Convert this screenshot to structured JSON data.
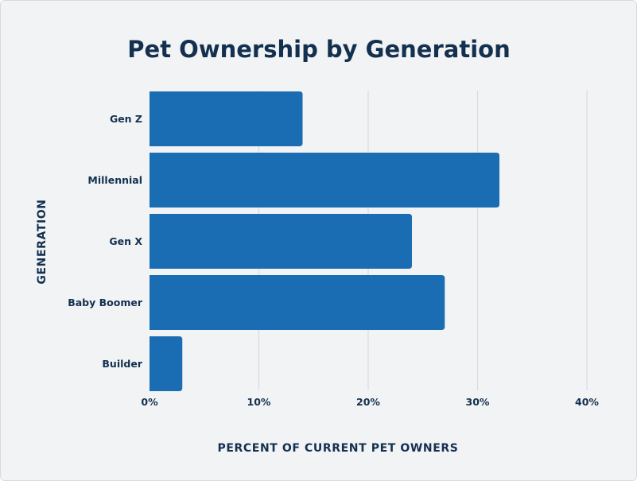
{
  "colors": {
    "background": "#f1f3f5",
    "bar": "#1b6db3",
    "text": "#13304f",
    "grid": "#d9dde2"
  },
  "chart_data": {
    "type": "bar",
    "orientation": "horizontal",
    "title": "Pet Ownership by Generation",
    "xlabel": "PERCENT OF CURRENT PET OWNERS",
    "ylabel": "GENERATION",
    "categories": [
      "Gen Z",
      "Millennial",
      "Gen X",
      "Baby Boomer",
      "Builder"
    ],
    "values": [
      14,
      32,
      24,
      27,
      3
    ],
    "unit": "%",
    "xlim": [
      0,
      40
    ],
    "xticks": [
      0,
      10,
      20,
      30,
      40
    ],
    "xtick_labels": [
      "0%",
      "10%",
      "20%",
      "30%",
      "40%"
    ],
    "grid": true,
    "legend": "none"
  }
}
